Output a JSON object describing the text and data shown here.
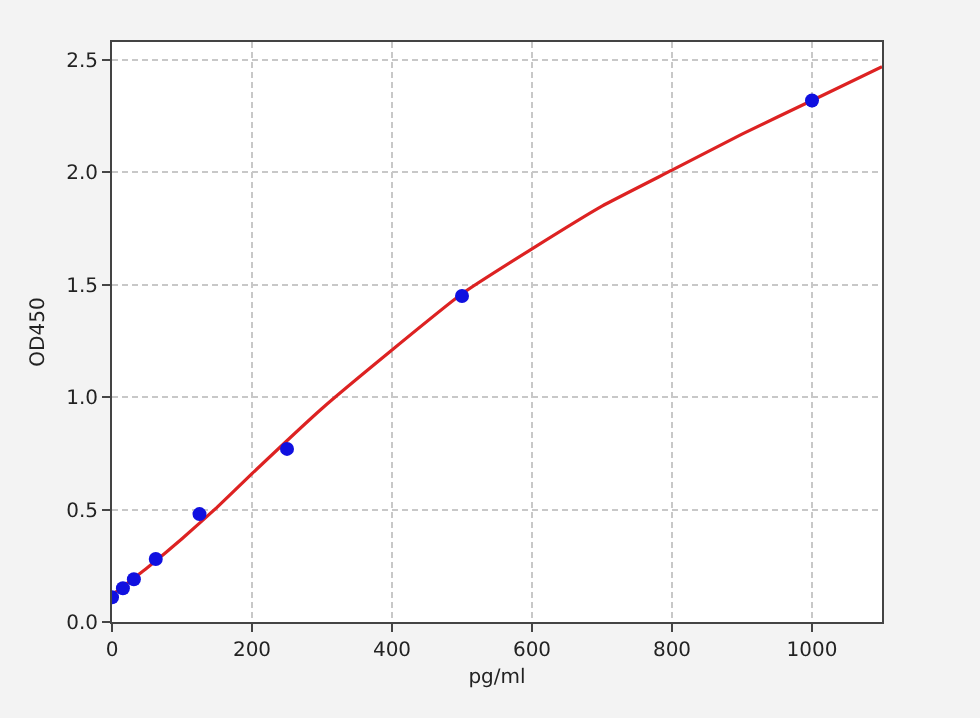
{
  "chart_data": {
    "type": "scatter",
    "xlabel": "pg/ml",
    "ylabel": "OD450",
    "xlim": [
      0,
      1100
    ],
    "xticks": [
      0,
      200,
      400,
      600,
      800,
      1000
    ],
    "ylim": [
      0,
      2.58
    ],
    "yticks": [
      {
        "value": 0,
        "label": "0.0"
      },
      0.5,
      {
        "value": 1,
        "label": "1.0"
      },
      1.5,
      {
        "value": 2,
        "label": "2.0"
      },
      2.5
    ],
    "grid": true,
    "series": [
      {
        "type": "line",
        "color": "#dd2222",
        "marker": "none",
        "line_style": "solid",
        "x": [
          0,
          50,
          100,
          150,
          200,
          300,
          400,
          500,
          600,
          700,
          800,
          900,
          1000,
          1100
        ],
        "values": [
          0.12,
          0.24,
          0.37,
          0.51,
          0.66,
          0.95,
          1.21,
          1.46,
          1.66,
          1.85,
          2.01,
          2.17,
          2.32,
          2.47
        ]
      },
      {
        "color": "#1010e0",
        "marker": "circle",
        "x": [
          0,
          15.6,
          31.25,
          62.5,
          125,
          250,
          500,
          1000
        ],
        "values": [
          0.11,
          0.15,
          0.19,
          0.28,
          0.48,
          0.77,
          1.45,
          2.32
        ]
      }
    ]
  }
}
